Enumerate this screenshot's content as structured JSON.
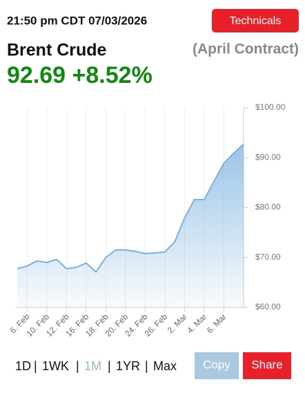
{
  "header": {
    "timestamp": "21:50 pm CDT 07/03/2026",
    "button": "Technicals",
    "title": "Brent Crude",
    "subtitle": "(April Contract)",
    "price": "92.69",
    "change": "+8.52%"
  },
  "chart_data": {
    "type": "area",
    "color": "#7ab0e0",
    "categories": [
      null,
      "6. Feb",
      null,
      "10. Feb",
      null,
      "12. Feb",
      null,
      "16. Feb",
      null,
      "18. Feb",
      null,
      "20. Feb",
      null,
      "24. Feb",
      null,
      "26. Feb",
      null,
      "2. Mar",
      null,
      "4. Mar",
      null,
      "6. Mar",
      null,
      null
    ],
    "values": [
      67.75,
      68.3,
      69.3,
      69.0,
      69.6,
      67.75,
      68.0,
      68.9,
      67.1,
      70.0,
      71.5,
      71.5,
      71.2,
      70.8,
      70.9,
      71.1,
      73.1,
      77.9,
      81.6,
      81.6,
      85.3,
      88.9,
      90.9,
      92.69
    ],
    "ylim": [
      60,
      100
    ],
    "yticks": [
      {
        "value": 60,
        "label": "$60.00"
      },
      {
        "value": 70,
        "label": "$70.00"
      },
      {
        "value": 80,
        "label": "$80.00"
      },
      {
        "value": 90,
        "label": "$90.00"
      },
      {
        "value": 100,
        "label": "$100.00"
      }
    ],
    "grid": true
  },
  "footer": {
    "ranges": [
      "1D",
      "1WK",
      "1M",
      "1YR",
      "Max"
    ],
    "active": "1M",
    "copy": "Copy",
    "share": "Share"
  }
}
